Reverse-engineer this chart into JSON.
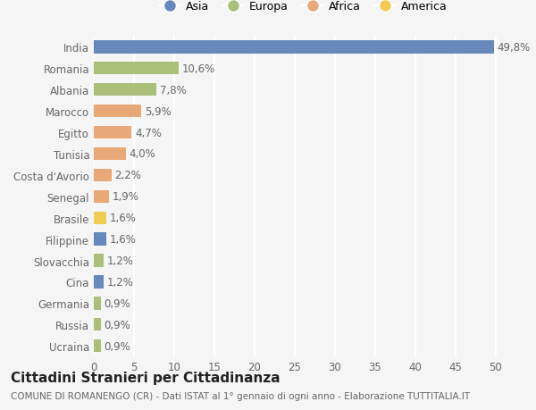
{
  "countries": [
    "India",
    "Romania",
    "Albania",
    "Marocco",
    "Egitto",
    "Tunisia",
    "Costa d'Avorio",
    "Senegal",
    "Brasile",
    "Filippine",
    "Slovacchia",
    "Cina",
    "Germania",
    "Russia",
    "Ucraina"
  ],
  "values": [
    49.8,
    10.6,
    7.8,
    5.9,
    4.7,
    4.0,
    2.2,
    1.9,
    1.6,
    1.6,
    1.2,
    1.2,
    0.9,
    0.9,
    0.9
  ],
  "labels": [
    "49,8%",
    "10,6%",
    "7,8%",
    "5,9%",
    "4,7%",
    "4,0%",
    "2,2%",
    "1,9%",
    "1,6%",
    "1,6%",
    "1,2%",
    "1,2%",
    "0,9%",
    "0,9%",
    "0,9%"
  ],
  "continents": [
    "Asia",
    "Europa",
    "Europa",
    "Africa",
    "Africa",
    "Africa",
    "Africa",
    "Africa",
    "America",
    "Asia",
    "Europa",
    "Asia",
    "Europa",
    "Europa",
    "Europa"
  ],
  "colors": {
    "Asia": "#6688bb",
    "Europa": "#aabf7a",
    "Africa": "#e8a878",
    "America": "#f0cc55"
  },
  "legend_order": [
    "Asia",
    "Europa",
    "Africa",
    "America"
  ],
  "title": "Cittadini Stranieri per Cittadinanza",
  "subtitle": "COMUNE DI ROMANENGO (CR) - Dati ISTAT al 1° gennaio di ogni anno - Elaborazione TUTTITALIA.IT",
  "xlim": [
    0,
    52
  ],
  "xticks": [
    0,
    5,
    10,
    15,
    20,
    25,
    30,
    35,
    40,
    45,
    50
  ],
  "background_color": "#f5f5f5",
  "bar_height": 0.6,
  "grid_color": "#ffffff",
  "tick_label_color": "#666666",
  "label_fontsize": 8.5,
  "title_fontsize": 11,
  "subtitle_fontsize": 7.5
}
